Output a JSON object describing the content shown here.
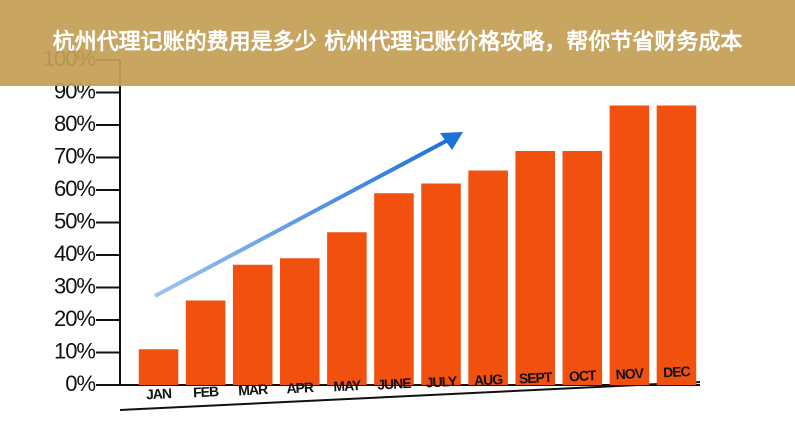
{
  "chart_data": {
    "type": "bar",
    "title": "杭州代理记账的费用是多少 杭州代理记账价格攻略，帮你节省财务成本",
    "categories": [
      "JAN",
      "FEB",
      "MAR",
      "APR",
      "MAY",
      "JUNE",
      "JULY",
      "AUG",
      "SEPT",
      "OCT",
      "NOV",
      "DEC"
    ],
    "values": [
      11,
      26,
      37,
      39,
      47,
      59,
      62,
      66,
      72,
      72,
      86,
      86
    ],
    "color": "#f2500f",
    "ylim": [
      0,
      100
    ],
    "yticks": [
      {
        "value": 0,
        "label": "0%"
      },
      {
        "value": 10,
        "label": "10%"
      },
      {
        "value": 20,
        "label": "20%"
      },
      {
        "value": 30,
        "label": "30%"
      },
      {
        "value": 40,
        "label": "40%"
      },
      {
        "value": 50,
        "label": "50%"
      },
      {
        "value": 60,
        "label": "60%"
      },
      {
        "value": 70,
        "label": "70%"
      },
      {
        "value": 80,
        "label": "80%"
      },
      {
        "value": 90,
        "label": "90%"
      },
      {
        "value": 100,
        "label": "100%"
      }
    ],
    "grid": false
  }
}
